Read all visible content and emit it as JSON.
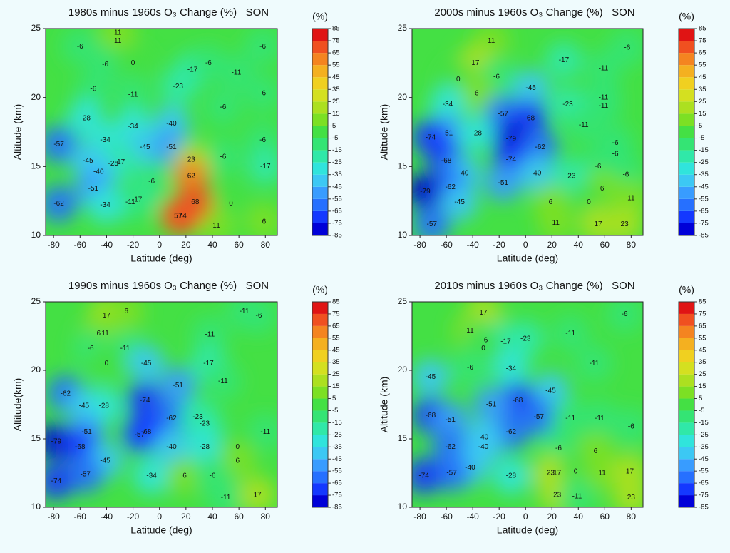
{
  "chart_data": [
    {
      "type": "contour",
      "title": "1980s minus 1960s O₃ Change (%)   SON",
      "xlabel": "Latitude (deg)",
      "ylabel": "Altitude (km)",
      "xlim": [
        -86,
        89
      ],
      "ylim": [
        10,
        25
      ],
      "xticks": [
        -80,
        -60,
        -40,
        -20,
        0,
        20,
        40,
        60,
        80
      ],
      "yticks": [
        10,
        15,
        20,
        25
      ],
      "colorbar": {
        "label": "(%)",
        "lim": [
          -85,
          85
        ],
        "ticks": [
          -85,
          -75,
          -65,
          -55,
          -45,
          -35,
          -25,
          -15,
          -5,
          5,
          15,
          25,
          35,
          45,
          55,
          65,
          75,
          85
        ],
        "colors": [
          "#0000d8",
          "#1438ff",
          "#2670ff",
          "#389cff",
          "#3cc8f4",
          "#30e4dc",
          "#30e8a8",
          "#34e474",
          "#44e044",
          "#7ce024",
          "#ace020",
          "#d4e020",
          "#f0d020",
          "#f4b020",
          "#f48420",
          "#f05020",
          "#e01414"
        ]
      },
      "points": {
        "x": [
          -31.5,
          -31.5,
          -60,
          -41,
          -20,
          -50,
          -20,
          14,
          25,
          37,
          58,
          78,
          78,
          -56,
          -20,
          9,
          -76,
          -41,
          -11,
          9,
          48,
          48,
          78,
          80,
          -54,
          -35,
          -30,
          -46,
          -50,
          -6,
          -17,
          -22,
          -41,
          -76,
          54,
          43,
          79,
          24,
          24,
          27,
          14,
          17.5
        ],
        "y": [
          24.7,
          24.1,
          23.7,
          22.4,
          22.5,
          20.6,
          20.2,
          20.8,
          22.0,
          22.5,
          21.8,
          20.3,
          23.7,
          18.5,
          17.9,
          18.1,
          16.6,
          16.9,
          16.4,
          16.4,
          19.3,
          15.7,
          16.9,
          15.0,
          15.4,
          15.2,
          15.3,
          14.6,
          13.4,
          13.9,
          12.6,
          12.4,
          12.2,
          12.3,
          12.3,
          10.7,
          11.0,
          15.5,
          14.3,
          12.4,
          11.4,
          11.4
        ],
        "values": [
          11,
          11,
          -6,
          -6,
          0,
          -6,
          -11,
          -23,
          -17,
          -6,
          -11,
          -6,
          -6,
          -28,
          -34,
          -40,
          -57,
          -34,
          -45,
          -51,
          -6,
          -6,
          -6,
          -17,
          -45,
          -23,
          -17,
          -40,
          -51,
          -6,
          -17,
          -11,
          -34,
          -62,
          0,
          11,
          6,
          23,
          62,
          68,
          57,
          74
        ]
      }
    },
    {
      "type": "contour",
      "title": "2000s minus 1960s O₃ Change (%)   SON",
      "xlabel": "Latitude (deg)",
      "ylabel": "Altitude (km)",
      "xlim": [
        -86,
        89
      ],
      "ylim": [
        10,
        25
      ],
      "xticks": [
        -80,
        -60,
        -40,
        -20,
        0,
        20,
        40,
        60,
        80
      ],
      "yticks": [
        10,
        15,
        20,
        25
      ],
      "colorbar": {
        "label": "(%)",
        "lim": [
          -85,
          85
        ],
        "ticks": [
          -85,
          -75,
          -65,
          -55,
          -45,
          -35,
          -25,
          -15,
          -5,
          5,
          15,
          25,
          35,
          45,
          55,
          65,
          75,
          85
        ],
        "colors": [
          "#0000d8",
          "#1438ff",
          "#2670ff",
          "#389cff",
          "#3cc8f4",
          "#30e4dc",
          "#30e8a8",
          "#34e474",
          "#44e044",
          "#7ce024",
          "#ace020",
          "#d4e020",
          "#f0d020",
          "#f4b020",
          "#f48420",
          "#f05020",
          "#e01414"
        ]
      },
      "points": {
        "x": [
          -26,
          -38,
          -22,
          -51,
          -37,
          29,
          59,
          77,
          4,
          32,
          59,
          59,
          -59,
          -17,
          3,
          -59,
          -37,
          -72,
          -11,
          44,
          68,
          68,
          11,
          -11,
          -60,
          55,
          76,
          -47,
          8,
          34,
          -17,
          -57,
          -76,
          58,
          80,
          -50,
          19,
          48,
          -71,
          23,
          55,
          75
        ],
        "y": [
          24.1,
          22.5,
          21.5,
          21.3,
          20.3,
          22.7,
          22.1,
          23.6,
          20.7,
          19.5,
          20.0,
          19.4,
          19.5,
          18.8,
          18.5,
          17.4,
          17.4,
          17.1,
          17.0,
          18.0,
          15.9,
          16.7,
          16.4,
          15.5,
          15.4,
          15.0,
          14.4,
          14.5,
          14.5,
          14.3,
          13.8,
          13.5,
          13.2,
          13.4,
          12.7,
          12.4,
          12.4,
          12.4,
          10.8,
          10.9,
          10.8,
          10.8
        ],
        "values": [
          11,
          17,
          -6,
          0,
          6,
          -17,
          -11,
          -6,
          -45,
          -23,
          -11,
          -11,
          -34,
          -57,
          -68,
          -51,
          -28,
          -74,
          -79,
          -11,
          -6,
          -6,
          -62,
          -74,
          -68,
          -6,
          -6,
          -40,
          -40,
          -23,
          -51,
          -62,
          -79,
          6,
          11,
          -45,
          6,
          0,
          -57,
          11,
          17,
          23
        ]
      }
    },
    {
      "type": "contour",
      "title": "1990s minus 1960s O₃ Change (%)   SON",
      "xlabel": "Latitude (deg)",
      "ylabel": "Altitude(km)",
      "xlim": [
        -86,
        89
      ],
      "ylim": [
        10,
        25
      ],
      "xticks": [
        -80,
        -60,
        -40,
        -20,
        0,
        20,
        40,
        60,
        80
      ],
      "yticks": [
        10,
        15,
        20,
        25
      ],
      "colorbar": {
        "label": "(%)",
        "lim": [
          -85,
          85
        ],
        "ticks": [
          -85,
          -75,
          -65,
          -55,
          -45,
          -35,
          -25,
          -15,
          -5,
          5,
          15,
          25,
          35,
          45,
          55,
          65,
          75,
          85
        ],
        "colors": [
          "#0000d8",
          "#1438ff",
          "#2670ff",
          "#389cff",
          "#3cc8f4",
          "#30e4dc",
          "#30e8a8",
          "#34e474",
          "#44e044",
          "#7ce024",
          "#ace020",
          "#d4e020",
          "#f0d020",
          "#f4b020",
          "#f48420",
          "#f05020",
          "#e01414"
        ]
      },
      "points": {
        "x": [
          -40,
          -25,
          64,
          75,
          -46,
          -41,
          -52,
          -26,
          38,
          -40,
          -10,
          37,
          14,
          48,
          -71,
          -11,
          -57,
          -42,
          9,
          29,
          34,
          -15,
          -10,
          -55,
          80,
          -78,
          -60,
          9,
          34,
          59,
          59,
          -41,
          -6,
          -56,
          19,
          40,
          -78,
          50,
          74
        ],
        "y": [
          24.0,
          24.3,
          24.3,
          24.0,
          22.7,
          22.7,
          21.6,
          21.6,
          22.6,
          20.5,
          20.5,
          20.5,
          18.9,
          19.2,
          18.3,
          17.8,
          17.4,
          17.4,
          16.5,
          16.6,
          16.1,
          15.3,
          15.5,
          15.5,
          15.5,
          14.8,
          14.4,
          14.4,
          14.4,
          14.4,
          13.4,
          13.4,
          12.3,
          12.4,
          12.3,
          12.3,
          11.9,
          10.7,
          10.9
        ],
        "values": [
          17,
          6,
          -11,
          -6,
          6,
          11,
          -6,
          -11,
          -11,
          0,
          -45,
          -17,
          -51,
          -11,
          -62,
          -74,
          -45,
          -28,
          -62,
          -23,
          -23,
          -57,
          -68,
          -51,
          -11,
          -79,
          -68,
          -40,
          -28,
          0,
          6,
          -45,
          -34,
          -57,
          6,
          -6,
          -74,
          -11,
          17
        ]
      }
    },
    {
      "type": "contour",
      "title": "2010s minus 1960s O₃ Change (%)   SON",
      "xlabel": "Latitude (deg)",
      "ylabel": "Altitude (km)",
      "xlim": [
        -86,
        89
      ],
      "ylim": [
        10,
        25
      ],
      "xticks": [
        -80,
        -60,
        -40,
        -20,
        0,
        20,
        40,
        60,
        80
      ],
      "yticks": [
        10,
        15,
        20,
        25
      ],
      "colorbar": {
        "label": "(%)",
        "lim": [
          -85,
          85
        ],
        "ticks": [
          -85,
          -75,
          -65,
          -55,
          -45,
          -35,
          -25,
          -15,
          -5,
          5,
          15,
          25,
          35,
          45,
          55,
          65,
          75,
          85
        ],
        "colors": [
          "#0000d8",
          "#1438ff",
          "#2670ff",
          "#389cff",
          "#3cc8f4",
          "#30e4dc",
          "#30e8a8",
          "#34e474",
          "#44e044",
          "#7ce024",
          "#ace020",
          "#d4e020",
          "#f0d020",
          "#f4b020",
          "#f48420",
          "#f05020",
          "#e01414"
        ]
      },
      "points": {
        "x": [
          -32,
          75,
          -42,
          -31,
          -15,
          0,
          -32,
          34,
          -42,
          -11,
          52,
          -72,
          19,
          -6,
          -26,
          -72,
          10,
          34,
          56,
          -57,
          80,
          -11,
          -32,
          -57,
          -32,
          25,
          53,
          -42,
          -56,
          -11,
          19,
          24,
          38,
          58,
          79,
          -77,
          24,
          39,
          80
        ],
        "y": [
          24.2,
          24.1,
          22.9,
          22.2,
          22.1,
          22.3,
          21.6,
          22.7,
          20.2,
          20.1,
          20.5,
          19.5,
          18.5,
          17.8,
          17.5,
          16.7,
          16.6,
          16.5,
          16.5,
          16.4,
          15.9,
          15.5,
          15.1,
          14.4,
          14.4,
          14.3,
          14.1,
          12.9,
          12.5,
          12.3,
          12.5,
          12.5,
          12.6,
          12.5,
          12.6,
          12.3,
          10.9,
          10.8,
          10.7
        ],
        "values": [
          17,
          -6,
          11,
          -6,
          -17,
          -23,
          0,
          -11,
          -6,
          -34,
          -11,
          -45,
          -45,
          -68,
          -51,
          -68,
          -57,
          -11,
          -11,
          -51,
          -6,
          -62,
          -40,
          -62,
          -40,
          -6,
          6,
          -40,
          -57,
          -28,
          23,
          17,
          0,
          11,
          17,
          -74,
          23,
          -11,
          23
        ]
      }
    }
  ]
}
